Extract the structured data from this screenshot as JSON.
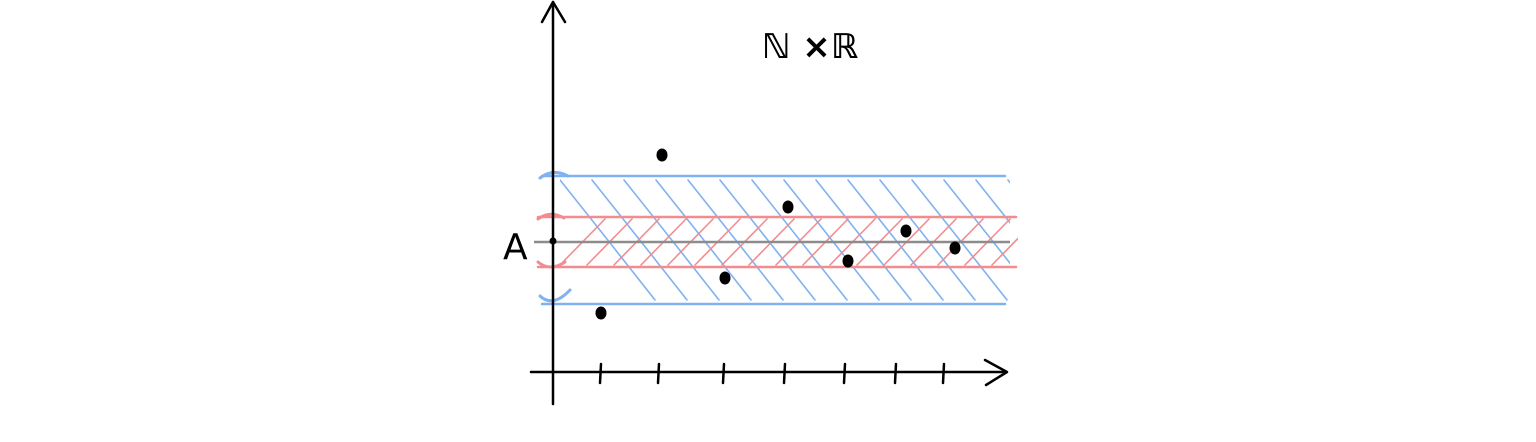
{
  "title": "ℕ ×ℝ",
  "limit_label": "A",
  "colors": {
    "axis": "#000000",
    "outer_band": "#7fb2ef",
    "inner_band": "#f28c90",
    "limit_line": "#8c8c8c",
    "points": "#000000"
  },
  "x_ticks": 7,
  "sequence_points": 7,
  "description_bands": [
    "outer-epsilon-band",
    "inner-epsilon-band"
  ]
}
